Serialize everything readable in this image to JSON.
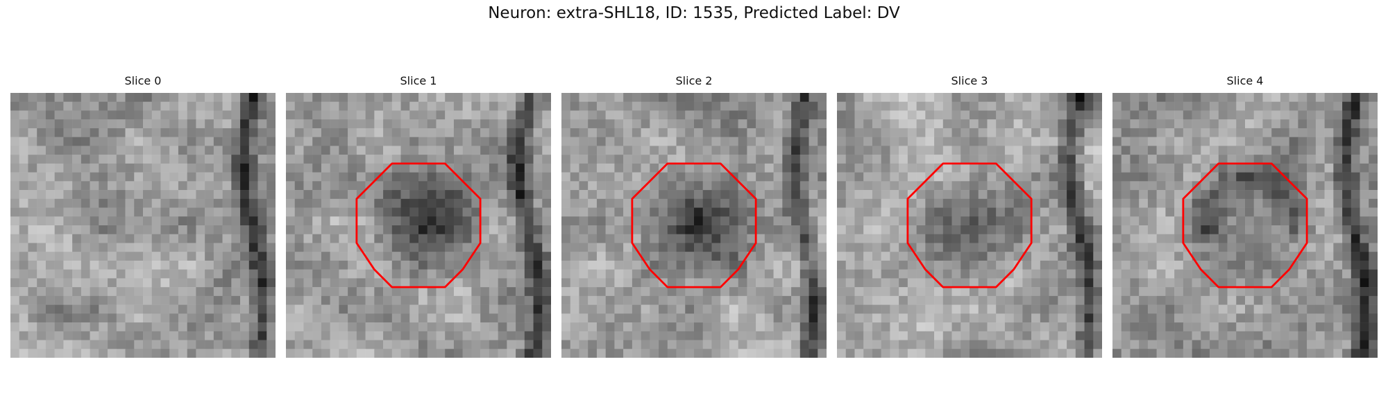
{
  "figure": {
    "title": "Neuron: extra-SHL18, ID: 1535, Predicted Label: DV"
  },
  "panels": [
    {
      "title": "Slice 0",
      "seed": 11,
      "has_contour": false,
      "dark_center": 0.0,
      "dark_ring": 0.0,
      "right_band": 0.85
    },
    {
      "title": "Slice 1",
      "seed": 23,
      "has_contour": true,
      "dark_center": 0.95,
      "dark_ring": 0.0,
      "right_band": 0.8
    },
    {
      "title": "Slice 2",
      "seed": 37,
      "has_contour": true,
      "dark_center": 0.85,
      "dark_ring": 0.0,
      "right_band": 0.7
    },
    {
      "title": "Slice 3",
      "seed": 41,
      "has_contour": true,
      "dark_center": 0.6,
      "dark_ring": 0.0,
      "right_band": 0.75
    },
    {
      "title": "Slice 4",
      "seed": 53,
      "has_contour": true,
      "dark_center": 0.0,
      "dark_ring": 0.55,
      "right_band": 0.8
    }
  ],
  "style": {
    "contour_color": "#ff0000",
    "colormap": "gray"
  }
}
